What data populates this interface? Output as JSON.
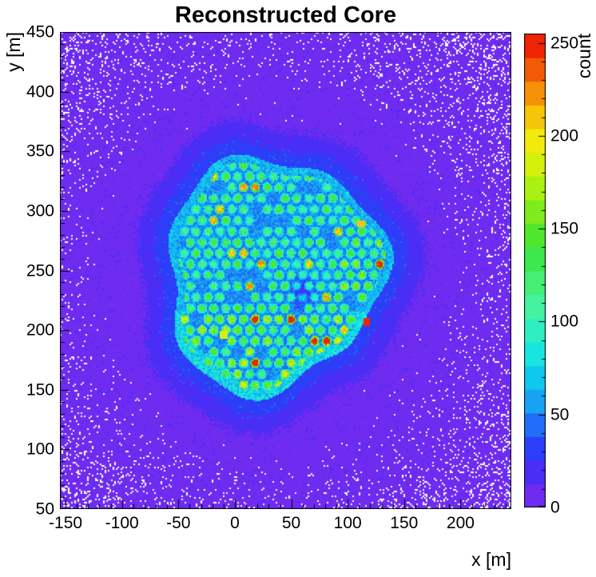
{
  "chart_data": {
    "type": "heatmap",
    "title": "Reconstructed Core",
    "xlabel": "x [m]",
    "ylabel": "y [m]",
    "zlabel": "count",
    "xlim": [
      -155,
      245
    ],
    "ylim": [
      50,
      450
    ],
    "zlim": [
      0,
      255
    ],
    "x_ticks": [
      -150,
      -100,
      -50,
      0,
      50,
      100,
      150,
      200
    ],
    "y_ticks": [
      50,
      100,
      150,
      200,
      250,
      300,
      350,
      400,
      450
    ],
    "z_ticks": [
      0,
      50,
      100,
      150,
      200,
      250
    ],
    "minor_tick_step": 10,
    "n_contours": 20,
    "palette": [
      "#6f2bf0",
      "#4b2df6",
      "#2d3ef8",
      "#1f6ef8",
      "#17a2f3",
      "#0fc8ee",
      "#17e6e0",
      "#2eeec2",
      "#45f2a0",
      "#45ee74",
      "#3ce84c",
      "#4fe62e",
      "#7deb1c",
      "#aaf012",
      "#d4f00c",
      "#f2ea0a",
      "#f6c409",
      "#f69007",
      "#f25a05",
      "#ee2404"
    ],
    "zero_bin_color": "#ffffff",
    "bin_size_px": 2,
    "background": {
      "mean_count": 5,
      "empty_fraction_near": 0.002,
      "empty_fraction_far": 0.32
    },
    "array_region": {
      "center_x": 33,
      "center_y": 248,
      "radius_m": 97,
      "edge_wobble_m": 14,
      "interior_count": 52,
      "rim_extra_count": 16,
      "rim_width_m": 15,
      "halo_extra_count": 26,
      "halo_width_m": 26,
      "void": {
        "x": 60,
        "y": 231,
        "radius_m": 17
      }
    },
    "detector_grid": {
      "spacing_m": 10.5,
      "row_step_m": 9.2,
      "dot_radius_m": 2.9,
      "typical_count": 75,
      "bright_count": 160,
      "missing_fraction": 0.12
    },
    "hot_spots": [
      {
        "x": 117,
        "y": 207,
        "count": 250
      },
      {
        "x": 112,
        "y": 289,
        "count": 205
      },
      {
        "x": -10,
        "y": 196,
        "count": 185
      }
    ],
    "seed": 1234
  }
}
